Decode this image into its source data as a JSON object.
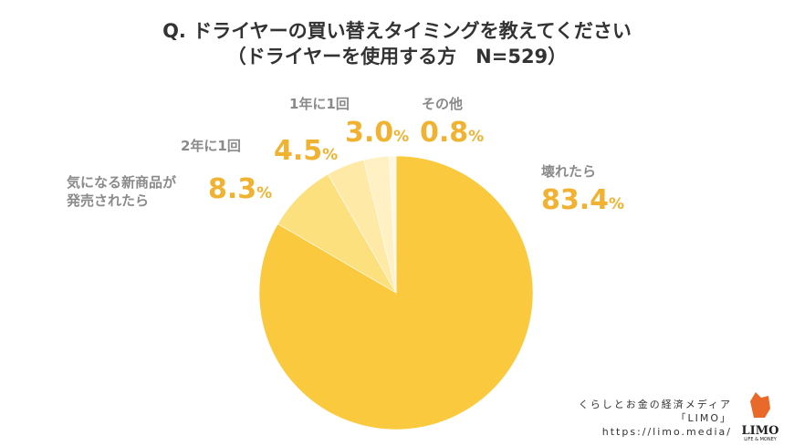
{
  "title": "Q. ドライヤーの買い替えタイミングを教えてください",
  "subtitle": "（ドライヤーを使用する方　N=529）",
  "chart_data": {
    "type": "pie",
    "title": "Q. ドライヤーの買い替えタイミングを教えてください",
    "subtitle": "（ドライヤーを使用する方　N=529）",
    "start": "top",
    "direction": "clockwise",
    "slices": [
      {
        "label": "壊れたら",
        "value": 83.4,
        "color": "#fbc93d"
      },
      {
        "label": "気になる新商品が発売されたら",
        "value": 8.3,
        "color": "#fde07e"
      },
      {
        "label": "2年に1回",
        "value": 4.5,
        "color": "#feeaa6"
      },
      {
        "label": "1年に1回",
        "value": 3.0,
        "color": "#fff1c4"
      },
      {
        "label": "その他",
        "value": 0.8,
        "color": "#fff8e0"
      }
    ],
    "value_suffix": "%"
  },
  "labels": {
    "s0": "壊れたら",
    "s0v": "83.4",
    "s1a": "気になる新商品が",
    "s1b": "発売されたら",
    "s1v": "8.3",
    "s2": "2年に1回",
    "s2v": "4.5",
    "s3": "1年に1回",
    "s3v": "3.0",
    "s4": "その他",
    "s4v": "0.8",
    "pct": "%"
  },
  "credit": {
    "line1": "くらしとお金の経済メディア",
    "line2": "「LIMO」",
    "line3": "https://limo.media/",
    "logo_text": "LIMO",
    "logo_sub": "LIFE & MONEY"
  }
}
